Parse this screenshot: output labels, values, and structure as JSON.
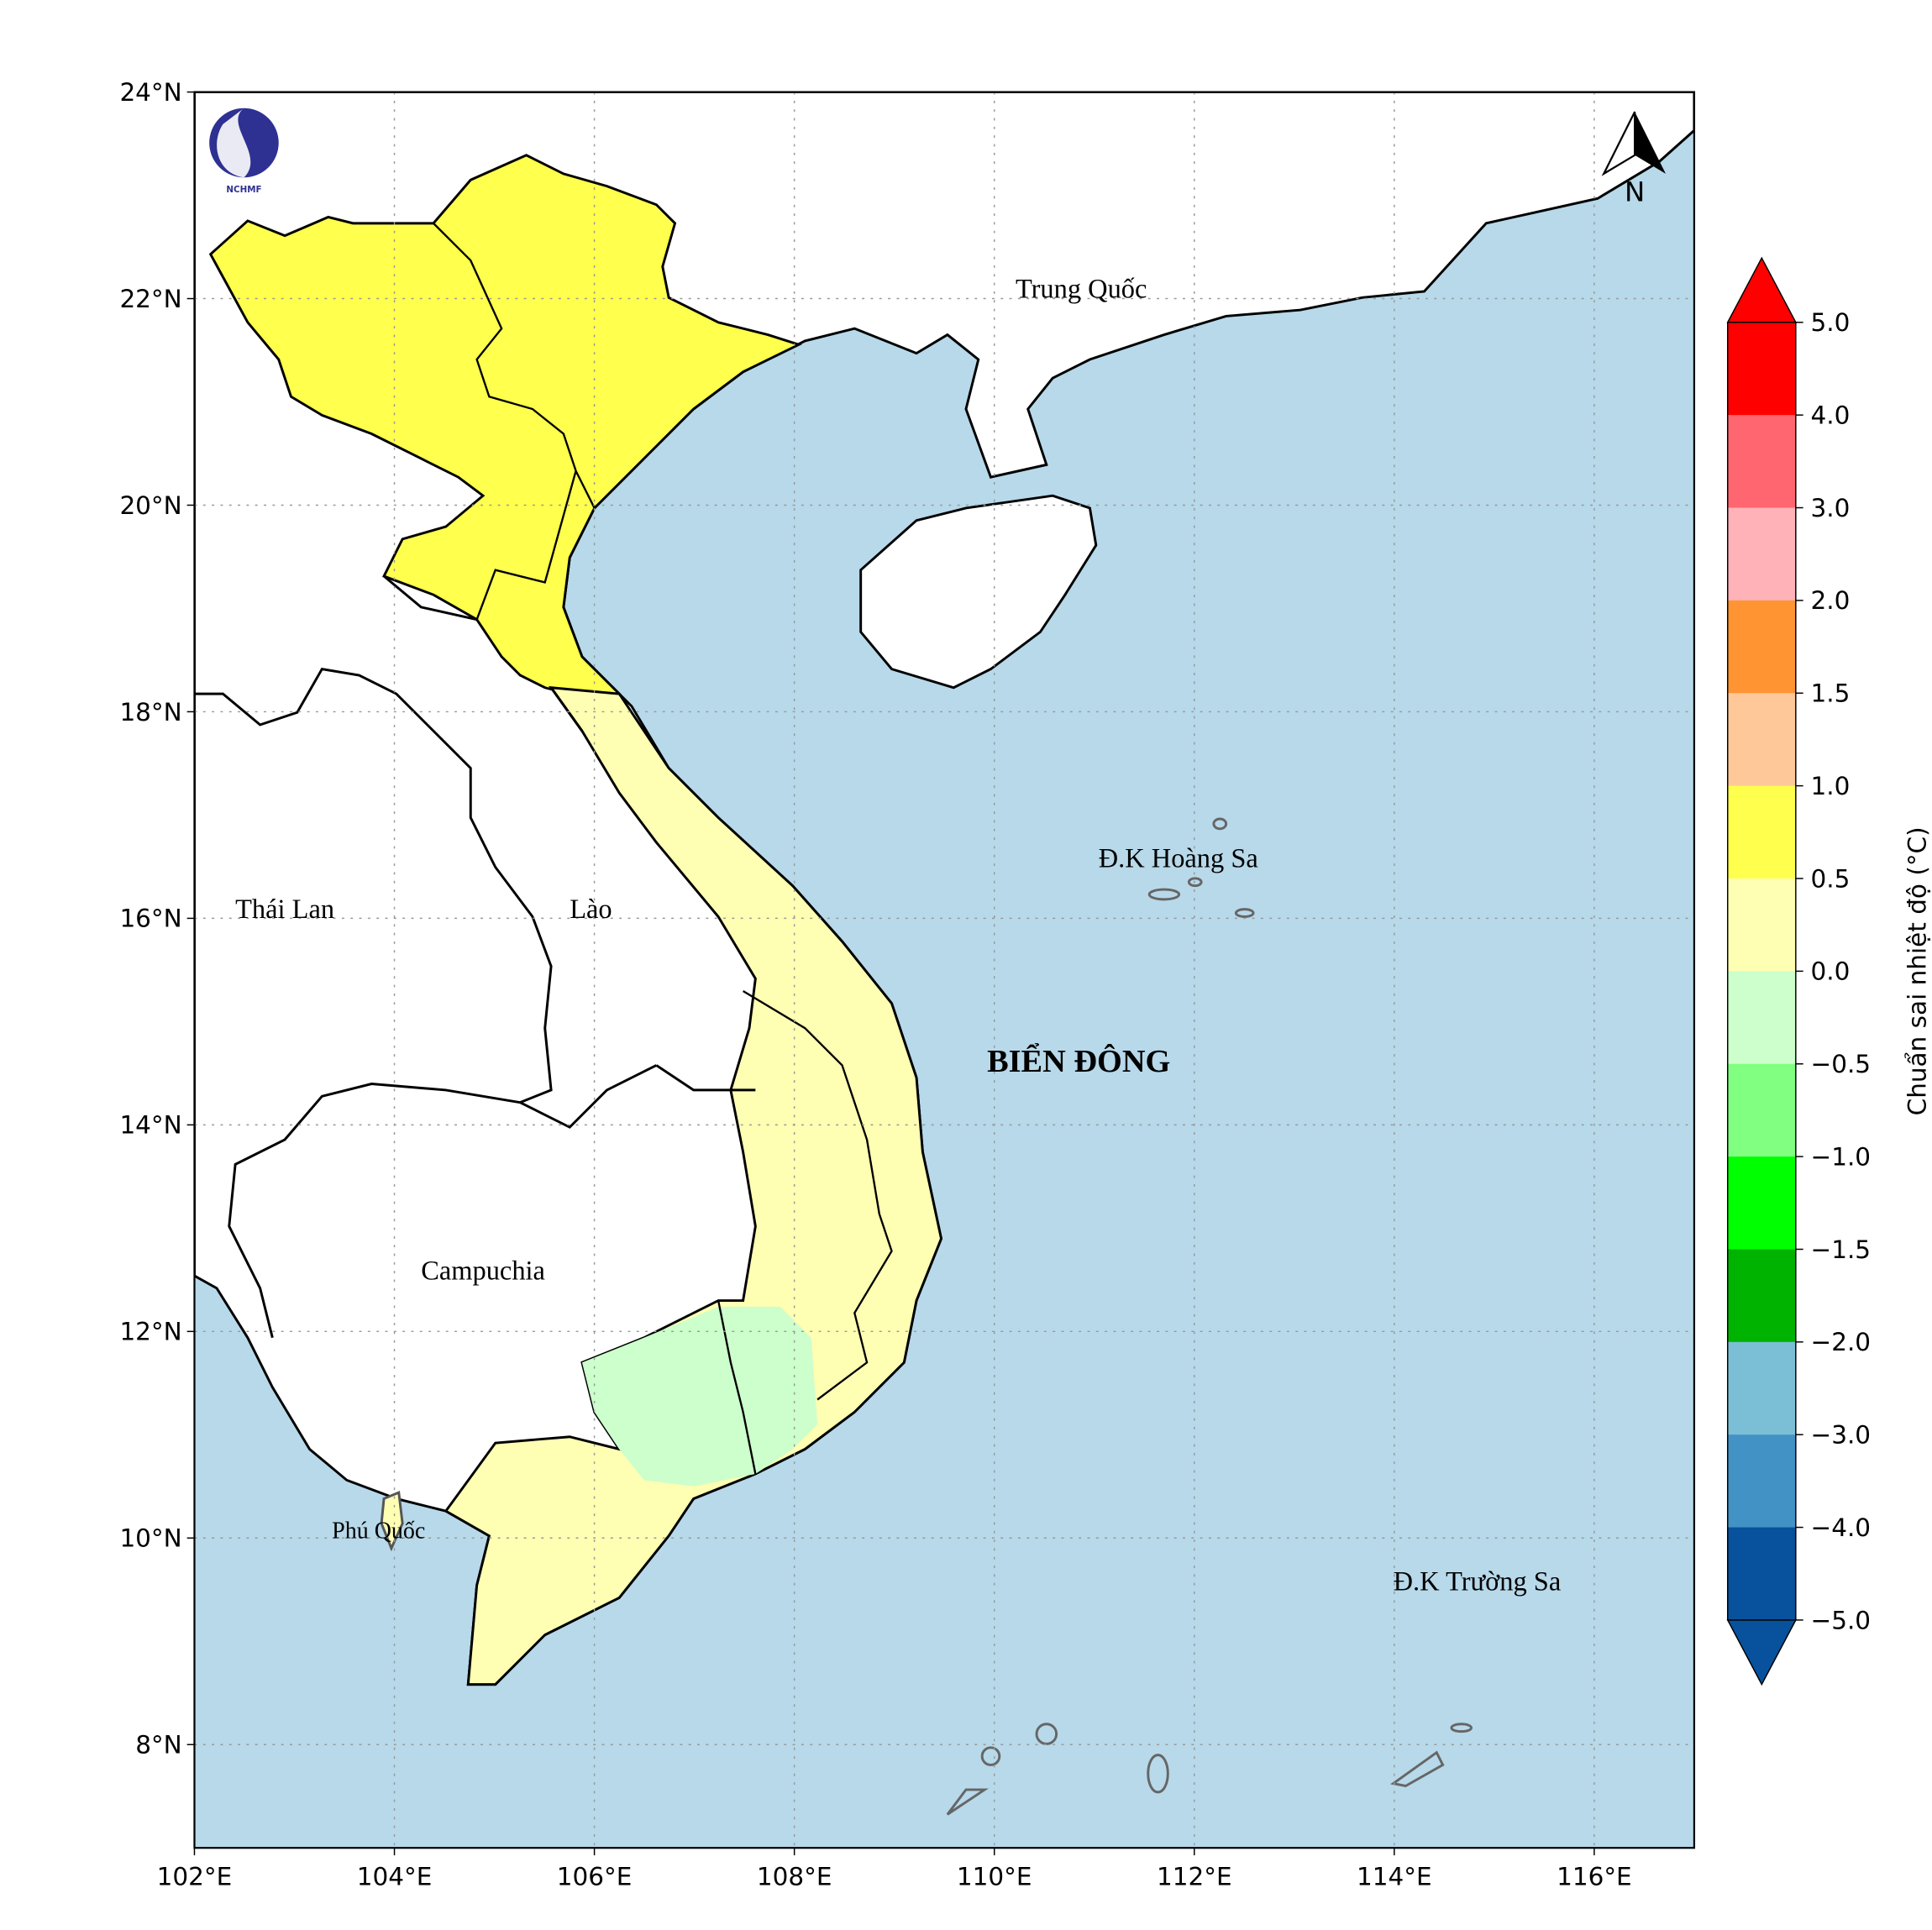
{
  "map": {
    "lon_ticks": [
      "102°E",
      "104°E",
      "106°E",
      "108°E",
      "110°E",
      "112°E",
      "114°E",
      "116°E"
    ],
    "lat_ticks": [
      "8°N",
      "10°N",
      "12°N",
      "14°N",
      "16°N",
      "18°N",
      "20°N",
      "22°N",
      "24°N"
    ],
    "extent": {
      "lon": [
        102,
        117
      ],
      "lat": [
        7,
        24
      ]
    },
    "grid": "dotted",
    "labels": {
      "china": "Trung Quốc",
      "thailand": "Thái Lan",
      "laos": "Lào",
      "cambodia": "Campuchia",
      "phu_quoc": "Phú Quốc",
      "hoang_sa": "Đ.K Hoàng Sa",
      "truong_sa": "Đ.K Trường Sa",
      "east_sea": "BIỂN ĐÔNG"
    },
    "logo_text": "NCHMF",
    "north_arrow": "N",
    "colors": {
      "sea": "#b7d9ea",
      "land": "#ffffff",
      "north": "#ffff4d",
      "central_south": "#ffffb3",
      "southeast": "#ccffcc"
    }
  },
  "colorbar": {
    "label": "Chuẩn sai nhiệt độ (°C)",
    "ticks": [
      "5.0",
      "4.0",
      "3.0",
      "2.0",
      "1.5",
      "1.0",
      "0.5",
      "0.0",
      "−0.5",
      "−1.0",
      "−1.5",
      "−2.0",
      "−3.0",
      "−4.0",
      "−5.0"
    ],
    "colors": [
      "#ff0000",
      "#ff6670",
      "#ffb3b8",
      "#ff9433",
      "#ffc899",
      "#ffff4d",
      "#ffffb3",
      "#ccffcc",
      "#80ff80",
      "#00ff00",
      "#00b300",
      "#7bbfd6",
      "#4292c6",
      "#08519c"
    ],
    "over_color": "#ff0000",
    "under_color": "#08519c"
  }
}
